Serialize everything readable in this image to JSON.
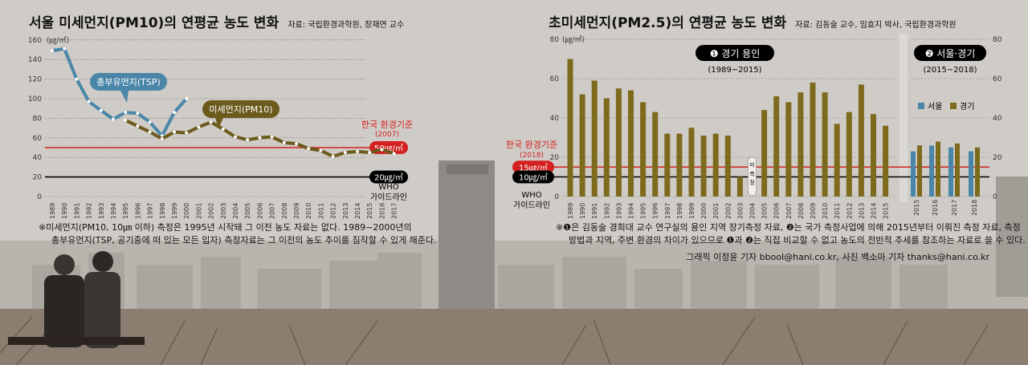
{
  "left": {
    "title": "서울 미세먼지(PM10)의 연평균 농도 변화",
    "source": "자료: 국립환경과학원, 장재연 교수",
    "unit": "(㎍/㎥)",
    "std_label": "한국 환경기준",
    "std_year": "(2007)",
    "std_value_label": "50㎍/㎥",
    "who_value_label": "20㎍/㎥",
    "who_label": "WHO 가이드라인",
    "tsp_label": "총부유먼지(TSP)",
    "pm10_label": "미세먼지(PM10)",
    "note_line1": "※미세먼지(PM10, 10㎛ 이하) 측정은 1995년 시작돼 그 이전 농도 자료는 없다. 1989~2000년의",
    "note_line2": "총부유먼지(TSP, 공기중에 떠 있는 모든 입자) 측정자료는 그 이전의 농도 추이를 짐작할 수 있게 해준다."
  },
  "right": {
    "title": "초미세먼지(PM2.5)의 연평균 농도 변화",
    "source": "자료: 김동술 교수, 임효지 박사, 국립환경과학원",
    "unit": "(㎍/㎥)",
    "panel1_num": "❶",
    "panel1_label": "경기 용인",
    "panel1_years": "(1989~2015)",
    "panel2_num": "❷",
    "panel2_label": "서울·경기",
    "panel2_years": "(2015~2018)",
    "gap_label": "미측정",
    "std_label": "한국 환경기준",
    "std_year": "(2018)",
    "std_value_label": "15㎍/㎥",
    "who_value_label": "10㎍/㎥",
    "who_label": "WHO 가이드라인",
    "legend_seoul": "서울",
    "legend_gyeonggi": "경기",
    "note_line1": "※❶은 김동술 경희대 교수 연구실의 용인 지역 장기측정 자료, ❷는 국가 측정사업에 의해 2015년부터 이뤄진 측정 자료, 측정",
    "note_line2": "방법과 지역, 주변 환경의 차이가 있으므로 ❶과 ❷는 직접 비교할 수 없고 농도의 전반적 추세를 참조하는 자료로 쓸 수 있다.",
    "credit": "그래픽 이정윤 기자 bbool@hani.co.kr, 사진 백소아 기자 thanks@hani.co.kr"
  },
  "colors": {
    "tsp": "#4a86a8",
    "pm10": "#6b5a1c",
    "bar_gyeonggi": "#7d6a1c",
    "bar_seoul": "#4a86a8",
    "standard": "#d42020",
    "who": "#000000"
  },
  "chart_data": [
    {
      "type": "line",
      "title": "서울 미세먼지(PM10)의 연평균 농도 변화",
      "ylabel": "(㎍/㎥)",
      "ylim": [
        0,
        160
      ],
      "yticks": [
        0,
        20,
        40,
        60,
        80,
        100,
        120,
        140,
        160
      ],
      "x": [
        "1989",
        "1990",
        "1991",
        "1992",
        "1993",
        "1994",
        "1995",
        "1996",
        "1997",
        "1998",
        "1999",
        "2000",
        "2001",
        "2002",
        "2003",
        "2004",
        "2005",
        "2006",
        "2007",
        "2008",
        "2009",
        "2010",
        "2011",
        "2012",
        "2013",
        "2014",
        "2015",
        "2016",
        "2017"
      ],
      "series": [
        {
          "name": "총부유먼지(TSP)",
          "x": [
            "1989",
            "1990",
            "1991",
            "1992",
            "1993",
            "1994",
            "1995",
            "1996",
            "1997",
            "1998",
            "1999",
            "2000"
          ],
          "values": [
            149,
            151,
            120,
            97,
            88,
            79,
            86,
            85,
            76,
            62,
            86,
            100
          ]
        },
        {
          "name": "미세먼지(PM10)",
          "x": [
            "1995",
            "1996",
            "1997",
            "1998",
            "1999",
            "2000",
            "2001",
            "2002",
            "2003",
            "2004",
            "2005",
            "2006",
            "2007",
            "2008",
            "2009",
            "2010",
            "2011",
            "2012",
            "2013",
            "2014",
            "2015",
            "2016",
            "2017"
          ],
          "values": [
            78,
            72,
            66,
            59,
            66,
            65,
            71,
            76,
            69,
            61,
            58,
            60,
            61,
            55,
            54,
            49,
            47,
            41,
            45,
            46,
            45,
            48,
            44
          ]
        }
      ],
      "reference_lines": [
        {
          "label": "50㎍/㎥",
          "value": 50
        },
        {
          "label": "20㎍/㎥",
          "value": 20
        }
      ],
      "grid": "dashed horizontal"
    },
    {
      "type": "bar",
      "title": "초미세먼지(PM2.5)의 연평균 농도 변화",
      "ylabel": "(㎍/㎥)",
      "ylim": [
        0,
        80
      ],
      "yticks": [
        0,
        20,
        40,
        60,
        80
      ],
      "categories": [
        "1989",
        "1990",
        "1991",
        "1992",
        "1993",
        "1994",
        "1995",
        "1996",
        "1997",
        "1998",
        "1999",
        "2000",
        "2001",
        "2002",
        "2003",
        "2004",
        "2005",
        "2006",
        "2007",
        "2008",
        "2009",
        "2010",
        "2011",
        "2012",
        "2013",
        "2014",
        "2015"
      ],
      "series": [
        {
          "name": "경기",
          "values": [
            70,
            52,
            59,
            50,
            55,
            54,
            48,
            43,
            32,
            32,
            35,
            31,
            32,
            31,
            10,
            null,
            44,
            51,
            48,
            53,
            58,
            53,
            37,
            43,
            57,
            42,
            36
          ]
        }
      ],
      "panel2": {
        "categories": [
          "2015",
          "2016",
          "2017",
          "2018"
        ],
        "series": [
          {
            "name": "서울",
            "values": [
              23,
              26,
              25,
              23
            ]
          },
          {
            "name": "경기",
            "values": [
              26,
              28,
              27,
              25
            ]
          }
        ]
      },
      "reference_lines": [
        {
          "label": "15㎍/㎥",
          "value": 15
        },
        {
          "label": "10㎍/㎥",
          "value": 10
        }
      ],
      "legend": "right",
      "grid": "dashed horizontal"
    }
  ]
}
